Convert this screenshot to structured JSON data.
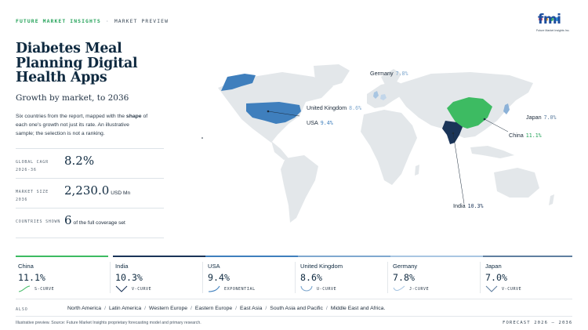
{
  "header": {
    "brand": "FUTURE MARKET INSIGHTS",
    "separator": "·",
    "kind": "MARKET PREVIEW",
    "logo_text": "fmi",
    "logo_sub": "Future Market Insights Inc."
  },
  "title": "Diabetes Meal Planning Digital Health Apps",
  "subtitle": "Growth by market, to 2036",
  "description": {
    "part1": "Six countries from the report, mapped with the ",
    "bold": "shape",
    "part2": " of each one's growth not just its rate. An illustrative sample; the selection is not a ranking."
  },
  "stats": {
    "cagr": {
      "label": "GLOBAL CAGR 2026-36",
      "value": "8.2%"
    },
    "size": {
      "label": "MARKET SIZE 2036",
      "value": "2,230.0",
      "unit": "USD Mn"
    },
    "countries": {
      "label": "COUNTRIES SHOWN",
      "value": "6",
      "unit": "of the full coverage set"
    }
  },
  "map": {
    "labels": {
      "germany": {
        "name": "Germany",
        "value": "7.8%"
      },
      "uk": {
        "name": "United Kingdom",
        "value": "8.6%"
      },
      "usa": {
        "name": "USA",
        "value": "9.4%"
      },
      "japan": {
        "name": "Japan",
        "value": "7.0%"
      },
      "china": {
        "name": "China",
        "value": "11.1%"
      },
      "india": {
        "name": "India",
        "value": "10.3%"
      }
    },
    "colors": {
      "land": "#e3e7ea",
      "usa": "#3f7fbd",
      "china": "#3dbb62",
      "india": "#1a3458",
      "uk": "#a9c6e2",
      "germany": "#c2d6ea",
      "japan": "#8cb2d8"
    }
  },
  "cards": [
    {
      "name": "China",
      "rate": "11.1%",
      "curve": "S-CURVE",
      "color": "#3dbb62"
    },
    {
      "name": "India",
      "rate": "10.3%",
      "curve": "V-CURVE",
      "color": "#1a3458"
    },
    {
      "name": "USA",
      "rate": "9.4%",
      "curve": "EXPONENTIAL",
      "color": "#3f7fbd"
    },
    {
      "name": "United Kingdom",
      "rate": "8.6%",
      "curve": "U-CURVE",
      "color": "#7fa8cf"
    },
    {
      "name": "Germany",
      "rate": "7.8%",
      "curve": "J-CURVE",
      "color": "#a9c6e2"
    },
    {
      "name": "Japan",
      "rate": "7.0%",
      "curve": "V-CURVE",
      "color": "#5f7fa0"
    }
  ],
  "also": {
    "label": "ALSO",
    "regions": [
      "North America",
      "Latin America",
      "Western Europe",
      "Eastern Europe",
      "East Asia",
      "South Asia and Pacific",
      "Middle East and Africa."
    ]
  },
  "footer": {
    "note": "Illustrative preview. Source: Future Market Insights proprietary forecasting model and primary research.",
    "forecast": "FORECAST 2026 – 2036"
  }
}
